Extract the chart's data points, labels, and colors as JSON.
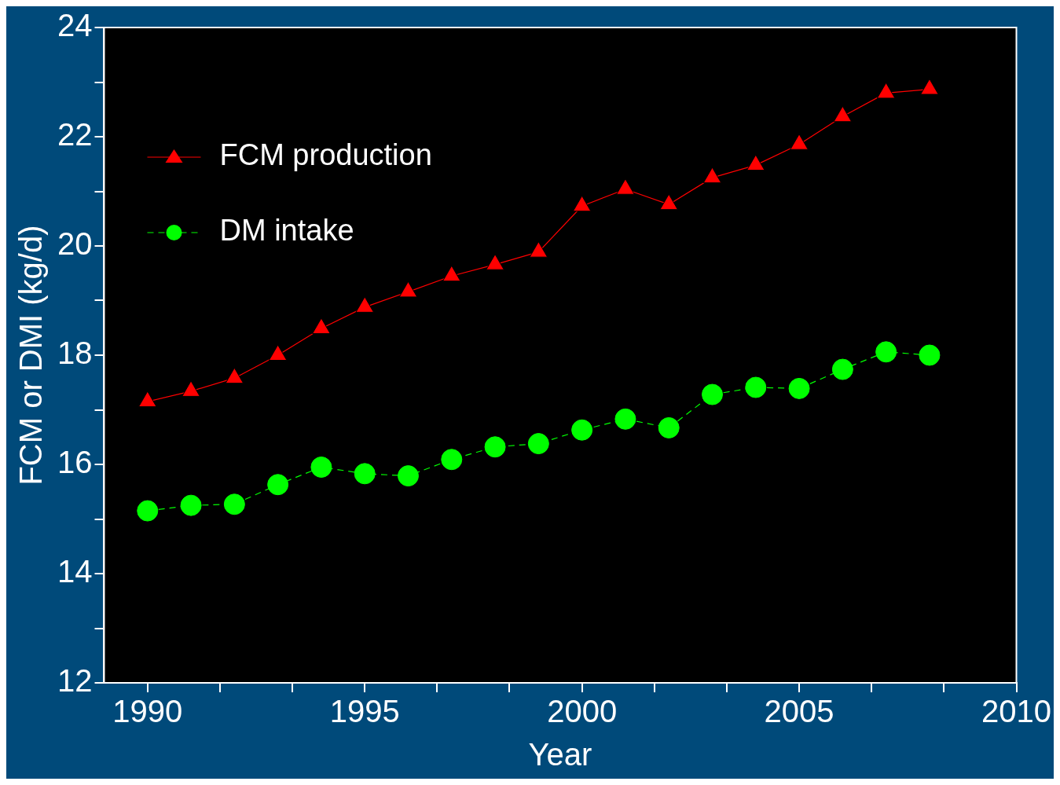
{
  "chart_data": {
    "type": "line",
    "xlabel": "Year",
    "ylabel": "FCM or DMI (kg/d)",
    "x": [
      1990,
      1991,
      1992,
      1993,
      1994,
      1995,
      1996,
      1997,
      1998,
      1999,
      2000,
      2001,
      2002,
      2003,
      2004,
      2005,
      2006,
      2007,
      2008
    ],
    "series": [
      {
        "name": "FCM production",
        "color": "#ff0000",
        "marker": "triangle",
        "line_style": "solid",
        "values": [
          17.15,
          17.34,
          17.58,
          18.0,
          18.49,
          18.88,
          19.16,
          19.45,
          19.66,
          19.89,
          20.73,
          21.04,
          20.76,
          21.25,
          21.48,
          21.86,
          22.37,
          22.8,
          22.87
        ]
      },
      {
        "name": "DM intake",
        "color": "#00ff00",
        "marker": "circle",
        "line_style": "dashed",
        "values": [
          15.15,
          15.25,
          15.27,
          15.63,
          15.95,
          15.83,
          15.79,
          16.09,
          16.32,
          16.38,
          16.63,
          16.83,
          16.67,
          17.28,
          17.41,
          17.39,
          17.74,
          18.06,
          18.0
        ]
      }
    ],
    "xlim": [
      1989,
      2010
    ],
    "xticks": [
      1990,
      {
        "value": 1991.667,
        "label": null
      },
      {
        "value": 1993.333,
        "label": null
      },
      1995,
      {
        "value": 1996.667,
        "label": null
      },
      {
        "value": 1998.333,
        "label": null
      },
      2000,
      {
        "value": 2001.667,
        "label": null
      },
      {
        "value": 2003.333,
        "label": null
      },
      2005,
      {
        "value": 2006.667,
        "label": null
      },
      {
        "value": 2008.333,
        "label": null
      },
      2010
    ],
    "ylim": [
      12,
      24
    ],
    "yticks": [
      12,
      {
        "value": 13,
        "label": null
      },
      14,
      {
        "value": 15,
        "label": null
      },
      16,
      {
        "value": 17,
        "label": null
      },
      18,
      {
        "value": 19,
        "label": null
      },
      20,
      {
        "value": 21,
        "label": null
      },
      22,
      {
        "value": 23,
        "label": null
      },
      24
    ],
    "grid": false,
    "legend": "top left"
  }
}
